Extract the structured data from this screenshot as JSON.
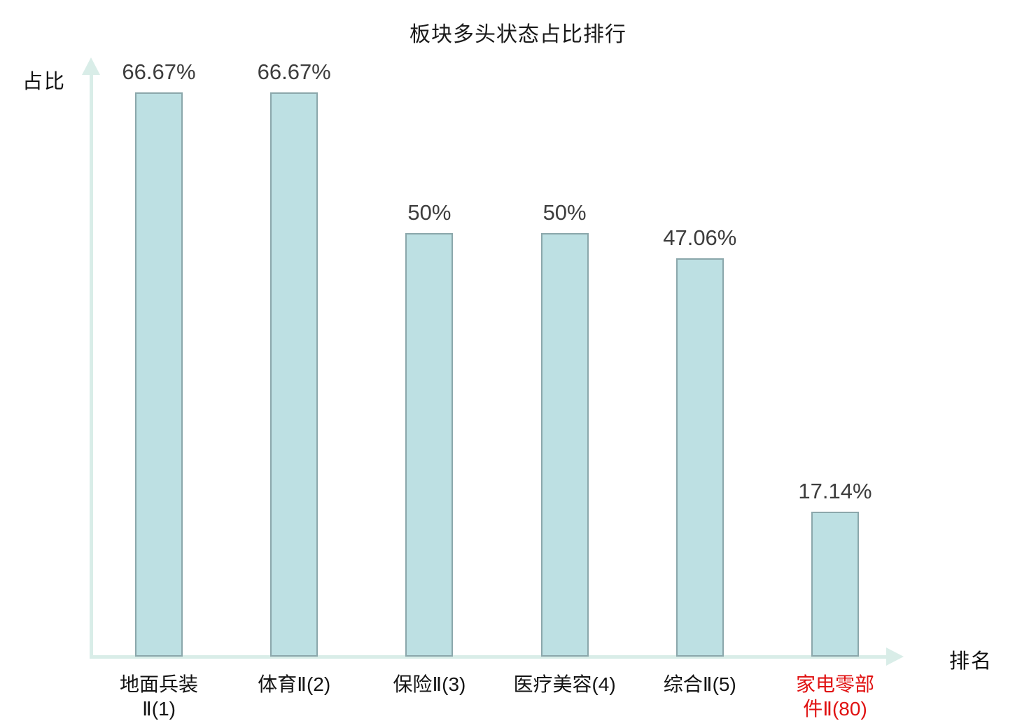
{
  "title": "板块多头状态占比排行",
  "y_axis_label": "占比",
  "x_axis_label": "排名",
  "chart_data": {
    "type": "bar",
    "title": "板块多头状态占比排行",
    "xlabel": "排名",
    "ylabel": "占比",
    "categories": [
      "地面兵装Ⅱ(1)",
      "体育Ⅱ(2)",
      "保险Ⅱ(3)",
      "医疗美容(4)",
      "综合Ⅱ(5)",
      "家电零部件Ⅱ(80)"
    ],
    "category_lines": [
      [
        "地面兵装",
        "Ⅱ(1)"
      ],
      [
        "体育Ⅱ(2)"
      ],
      [
        "保险Ⅱ(3)"
      ],
      [
        "医疗美容(4)"
      ],
      [
        "综合Ⅱ(5)"
      ],
      [
        "家电零部",
        "件Ⅱ(80)"
      ]
    ],
    "values": [
      66.67,
      66.67,
      50,
      50,
      47.06,
      17.14
    ],
    "value_labels": [
      "66.67%",
      "66.67%",
      "50%",
      "50%",
      "47.06%",
      "17.14%"
    ],
    "highlight_index": 5,
    "ylim": [
      0,
      70
    ],
    "grid": false,
    "legend": false,
    "colors": {
      "bar_fill": "#bde0e3",
      "bar_border": "#8ba7ab",
      "axis": "#d9ede8",
      "value_text": "#3d3d3d",
      "category_text": "#141414",
      "highlight_text": "#e01212"
    }
  }
}
